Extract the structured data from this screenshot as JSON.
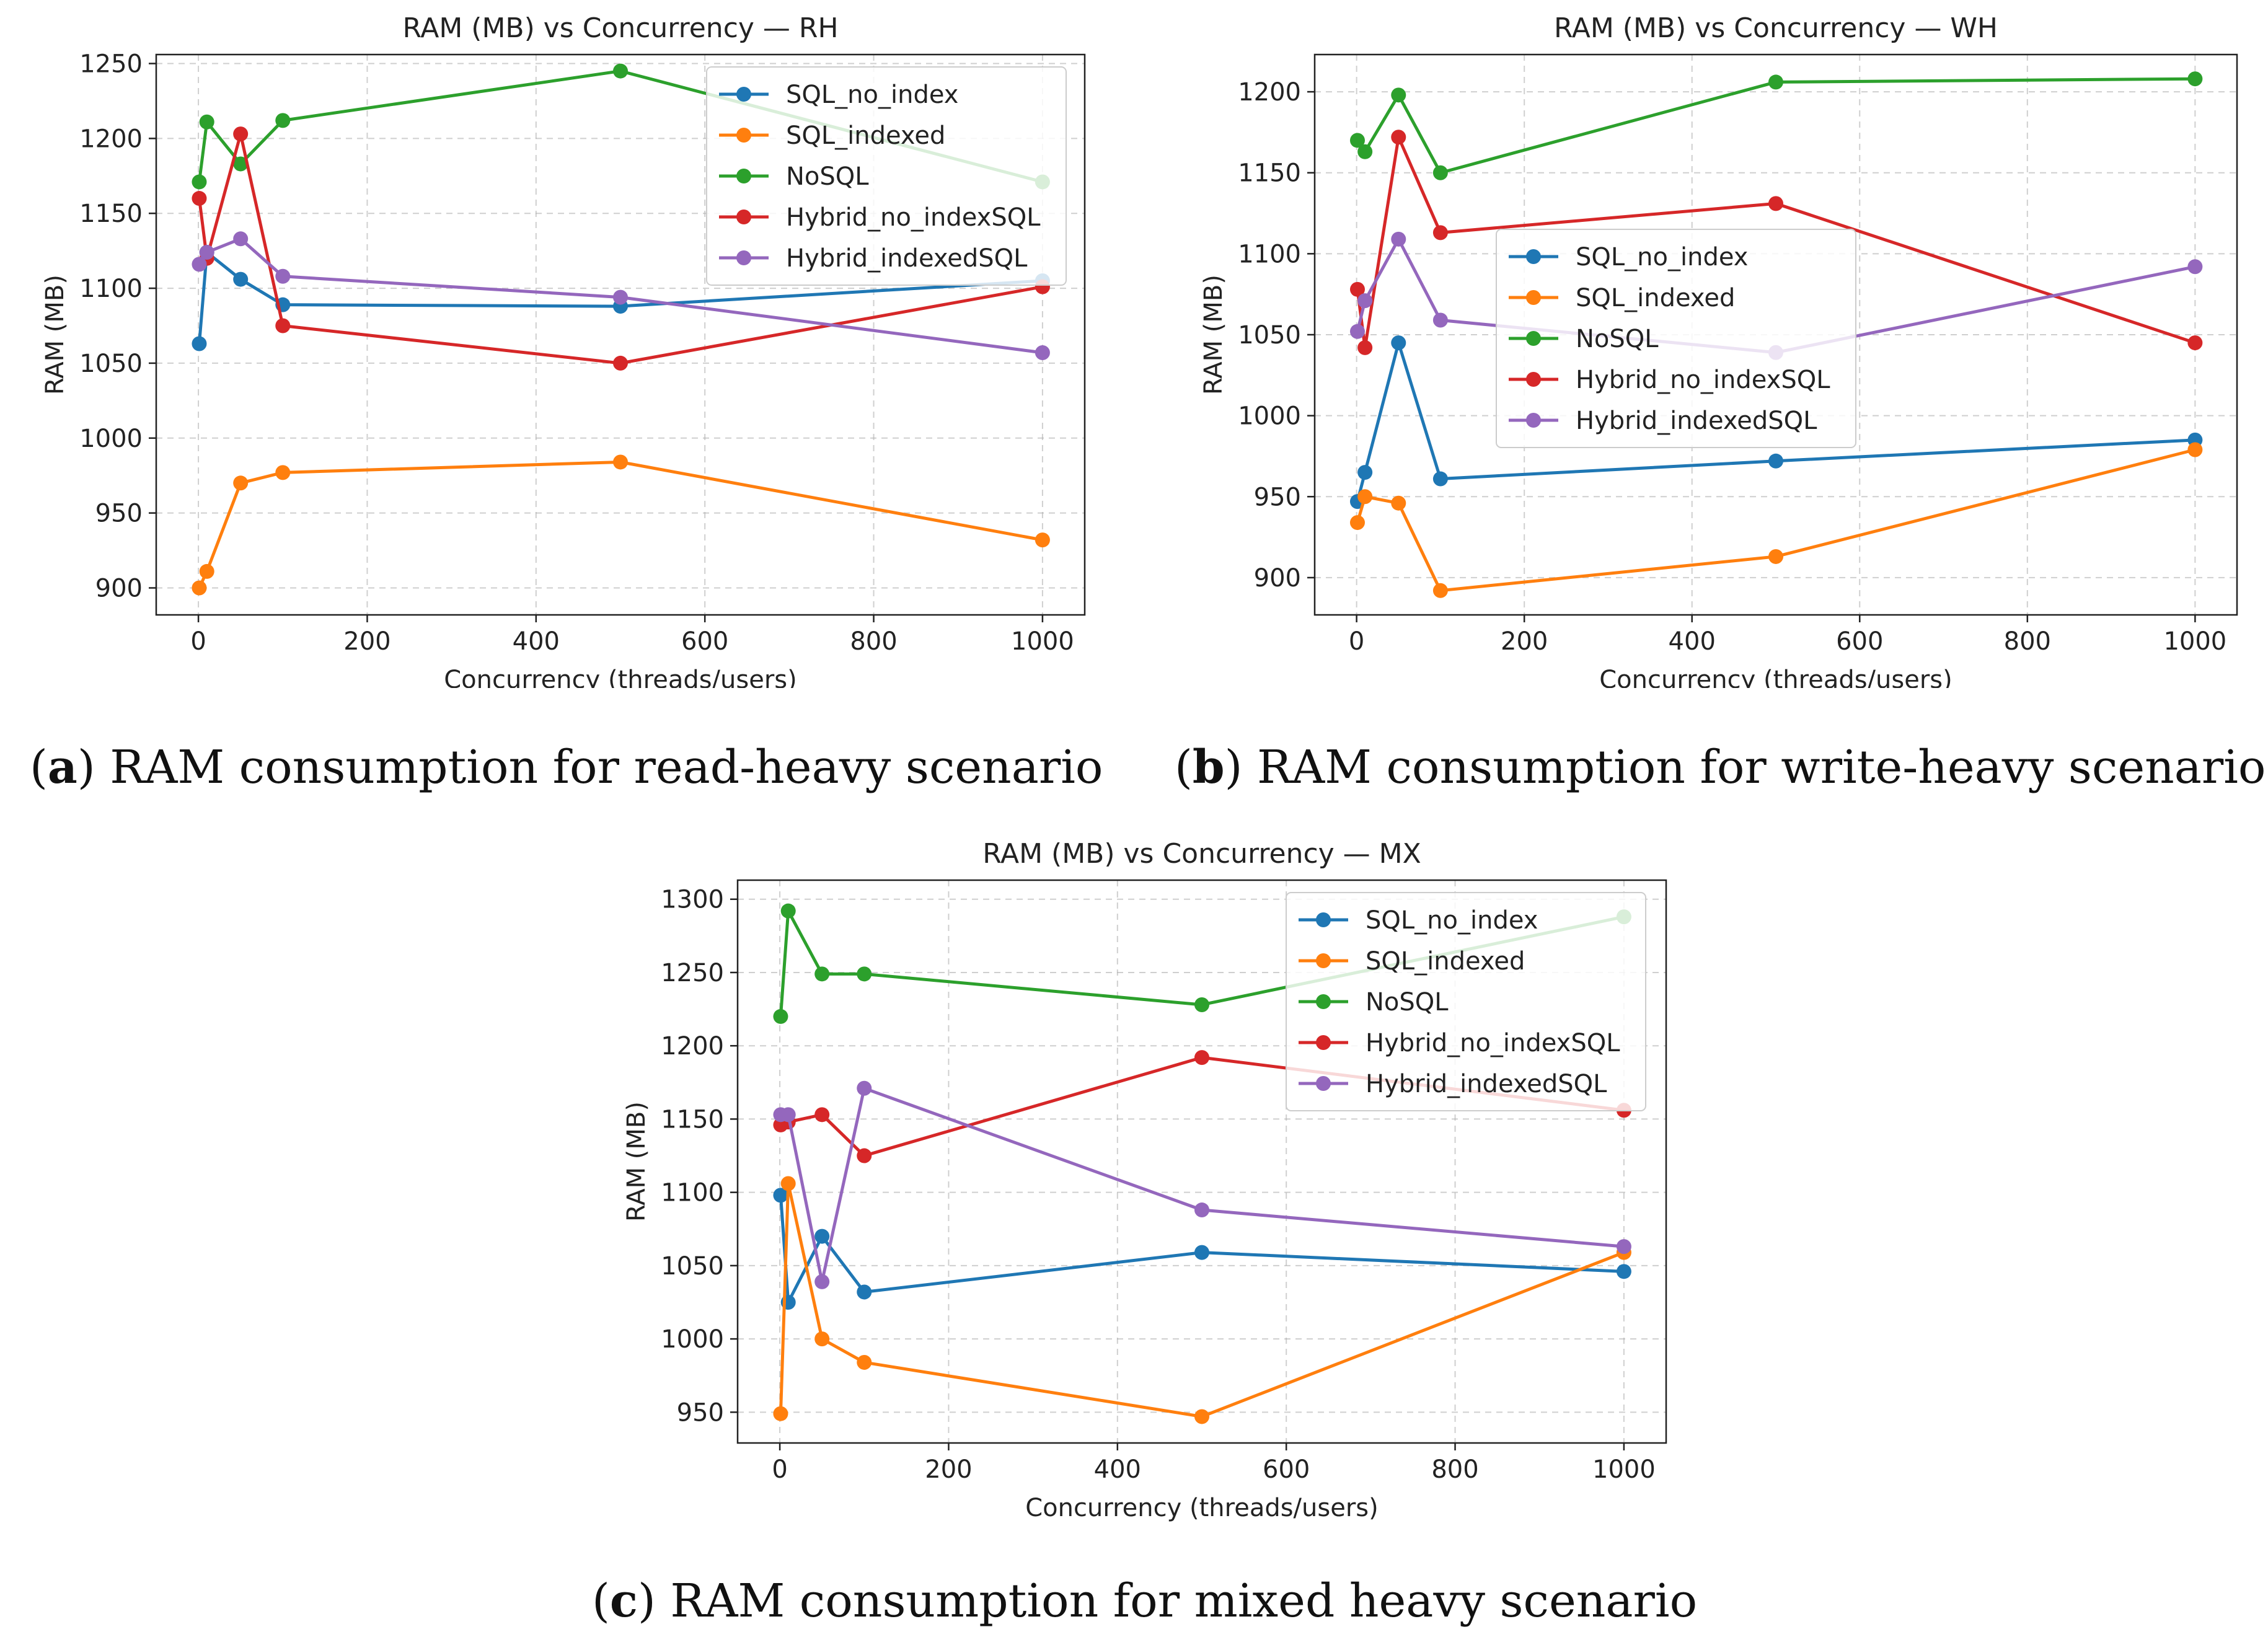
{
  "series_names": [
    "SQL_no_index",
    "SQL_indexed",
    "NoSQL",
    "Hybrid_no_indexSQL",
    "Hybrid_indexedSQL"
  ],
  "colors": {
    "SQL_no_index": "#1f77b4",
    "SQL_indexed": "#ff7f0e",
    "NoSQL": "#2ca02c",
    "Hybrid_no_indexSQL": "#d62728",
    "Hybrid_indexedSQL": "#9467bd"
  },
  "captions": [
    {
      "letter": "a",
      "open": "(",
      "close": ")",
      "text": " RAM consumption for read-heavy scenario"
    },
    {
      "letter": "b",
      "open": "(",
      "close": ")",
      "text": " RAM consumption for write-heavy scenario"
    },
    {
      "letter": "c",
      "open": "(",
      "close": ")",
      "text": " RAM consumption for mixed heavy scenario"
    }
  ],
  "chart_data": [
    {
      "type": "line",
      "title": "RAM (MB) vs Concurrency — RH",
      "xlabel": "Concurrency (threads/users)",
      "ylabel": "RAM (MB)",
      "xlim": [
        -50,
        1050
      ],
      "ylim": [
        882,
        1256
      ],
      "xticks": [
        0,
        200,
        400,
        600,
        800,
        1000
      ],
      "yticks": [
        900,
        950,
        1000,
        1050,
        1100,
        1150,
        1200,
        1250
      ],
      "grid": true,
      "legend": "top-right",
      "x": [
        1,
        10,
        50,
        100,
        500,
        1000
      ],
      "series": [
        {
          "name": "SQL_no_index",
          "values": [
            1063,
            1124,
            1106,
            1089,
            1088,
            1105
          ]
        },
        {
          "name": "SQL_indexed",
          "values": [
            900,
            911,
            970,
            977,
            984,
            932
          ]
        },
        {
          "name": "NoSQL",
          "values": [
            1171,
            1211,
            1183,
            1212,
            1245,
            1171
          ]
        },
        {
          "name": "Hybrid_no_indexSQL",
          "values": [
            1160,
            1120,
            1203,
            1075,
            1050,
            1101
          ]
        },
        {
          "name": "Hybrid_indexedSQL",
          "values": [
            1116,
            1124,
            1133,
            1108,
            1094,
            1057
          ]
        }
      ]
    },
    {
      "type": "line",
      "title": "RAM (MB) vs Concurrency — WH",
      "xlabel": "Concurrency (threads/users)",
      "ylabel": "RAM (MB)",
      "xlim": [
        -50,
        1050
      ],
      "ylim": [
        877,
        1223
      ],
      "xticks": [
        0,
        200,
        400,
        600,
        800,
        1000
      ],
      "yticks": [
        900,
        950,
        1000,
        1050,
        1100,
        1150,
        1200
      ],
      "grid": true,
      "legend": "center",
      "x": [
        1,
        10,
        50,
        100,
        500,
        1000
      ],
      "series": [
        {
          "name": "SQL_no_index",
          "values": [
            947,
            965,
            1045,
            961,
            972,
            985
          ]
        },
        {
          "name": "SQL_indexed",
          "values": [
            934,
            950,
            946,
            892,
            913,
            979
          ]
        },
        {
          "name": "NoSQL",
          "values": [
            1170,
            1163,
            1198,
            1150,
            1206,
            1208
          ]
        },
        {
          "name": "Hybrid_no_indexSQL",
          "values": [
            1078,
            1042,
            1172,
            1113,
            1131,
            1045
          ]
        },
        {
          "name": "Hybrid_indexedSQL",
          "values": [
            1052,
            1071,
            1109,
            1059,
            1039,
            1092
          ]
        }
      ]
    },
    {
      "type": "line",
      "title": "RAM (MB) vs Concurrency — MX",
      "xlabel": "Concurrency (threads/users)",
      "ylabel": "RAM (MB)",
      "xlim": [
        -50,
        1050
      ],
      "ylim": [
        929,
        1313
      ],
      "xticks": [
        0,
        200,
        400,
        600,
        800,
        1000
      ],
      "yticks": [
        950,
        1000,
        1050,
        1100,
        1150,
        1200,
        1250,
        1300
      ],
      "grid": true,
      "legend": "top-right",
      "x": [
        1,
        10,
        50,
        100,
        500,
        1000
      ],
      "series": [
        {
          "name": "SQL_no_index",
          "values": [
            1098,
            1025,
            1070,
            1032,
            1059,
            1046
          ]
        },
        {
          "name": "SQL_indexed",
          "values": [
            949,
            1106,
            1000,
            984,
            947,
            1059
          ]
        },
        {
          "name": "NoSQL",
          "values": [
            1220,
            1292,
            1249,
            1249,
            1228,
            1288
          ]
        },
        {
          "name": "Hybrid_no_indexSQL",
          "values": [
            1146,
            1148,
            1153,
            1125,
            1192,
            1156
          ]
        },
        {
          "name": "Hybrid_indexedSQL",
          "values": [
            1153,
            1153,
            1039,
            1171,
            1088,
            1063
          ]
        }
      ]
    }
  ]
}
